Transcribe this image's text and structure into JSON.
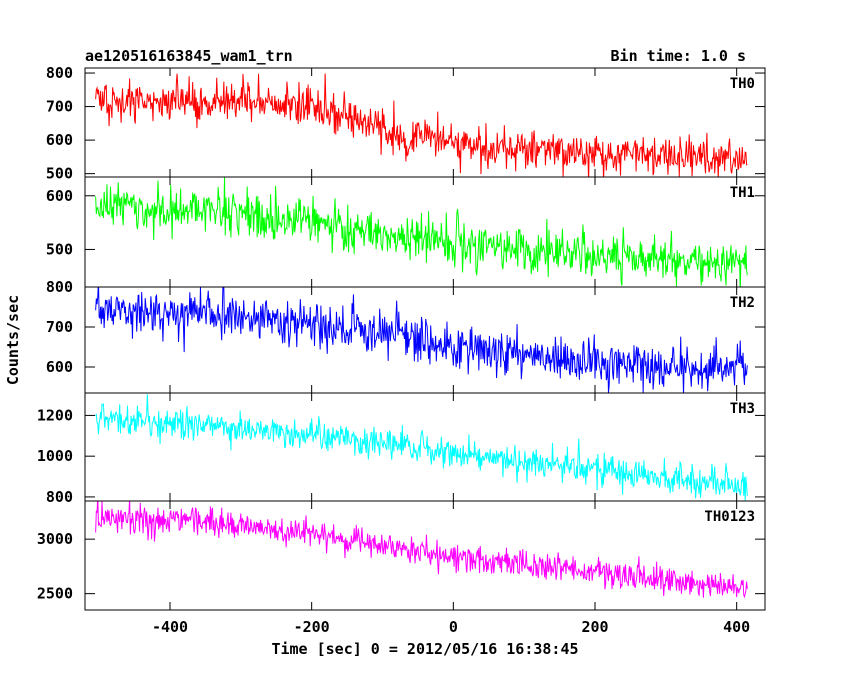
{
  "header": {
    "title": "ae120516163845_wam1_trn",
    "bin_time": "Bin time: 1.0 s"
  },
  "chart_data": {
    "type": "line",
    "title": "ae120516163845_wam1_trn",
    "subtitle": "Bin time: 1.0 s",
    "xlabel": "Time [sec] 0 = 2012/05/16 16:38:45",
    "ylabel": "Counts/sec",
    "xlim": [
      -520,
      440
    ],
    "x_range": [
      -505,
      415
    ],
    "x_step": 1,
    "xticks": [
      -400,
      -200,
      0,
      200,
      400
    ],
    "grid": false,
    "panels": [
      {
        "name": "TH0",
        "color": "#ff0000",
        "ylim": [
          490,
          815
        ],
        "yticks": [
          500,
          600,
          700,
          800
        ],
        "trend": [
          [
            -505,
            720
          ],
          [
            -300,
            715
          ],
          [
            -200,
            700
          ],
          [
            -150,
            675
          ],
          [
            -100,
            635
          ],
          [
            -60,
            590
          ],
          [
            -40,
            620
          ],
          [
            0,
            590
          ],
          [
            100,
            570
          ],
          [
            200,
            560
          ],
          [
            415,
            540
          ]
        ],
        "noise": 30
      },
      {
        "name": "TH1",
        "color": "#00ff00",
        "ylim": [
          430,
          635
        ],
        "yticks": [
          500,
          600
        ],
        "trend": [
          [
            -505,
            585
          ],
          [
            -300,
            570
          ],
          [
            -200,
            550
          ],
          [
            -100,
            530
          ],
          [
            0,
            515
          ],
          [
            100,
            500
          ],
          [
            200,
            490
          ],
          [
            300,
            480
          ],
          [
            415,
            470
          ]
        ],
        "noise": 22
      },
      {
        "name": "TH2",
        "color": "#0000ff",
        "ylim": [
          535,
          800
        ],
        "yticks": [
          600,
          700,
          800
        ],
        "trend": [
          [
            -505,
            740
          ],
          [
            -300,
            725
          ],
          [
            -200,
            700
          ],
          [
            -100,
            685
          ],
          [
            0,
            650
          ],
          [
            100,
            630
          ],
          [
            200,
            610
          ],
          [
            300,
            600
          ],
          [
            415,
            590
          ]
        ],
        "noise": 27
      },
      {
        "name": "TH3",
        "color": "#00ffff",
        "ylim": [
          780,
          1310
        ],
        "yticks": [
          800,
          1000,
          1200
        ],
        "trend": [
          [
            -505,
            1180
          ],
          [
            -400,
            1165
          ],
          [
            -300,
            1140
          ],
          [
            -200,
            1100
          ],
          [
            -100,
            1060
          ],
          [
            0,
            1010
          ],
          [
            100,
            970
          ],
          [
            200,
            940
          ],
          [
            300,
            900
          ],
          [
            415,
            860
          ]
        ],
        "noise": 38
      },
      {
        "name": "TH0123",
        "color": "#ff00ff",
        "ylim": [
          2350,
          3350
        ],
        "yticks": [
          2500,
          3000
        ],
        "trend": [
          [
            -505,
            3200
          ],
          [
            -400,
            3180
          ],
          [
            -300,
            3130
          ],
          [
            -200,
            3050
          ],
          [
            -100,
            2950
          ],
          [
            0,
            2830
          ],
          [
            100,
            2760
          ],
          [
            200,
            2700
          ],
          [
            300,
            2620
          ],
          [
            415,
            2550
          ]
        ],
        "noise": 65
      }
    ]
  }
}
